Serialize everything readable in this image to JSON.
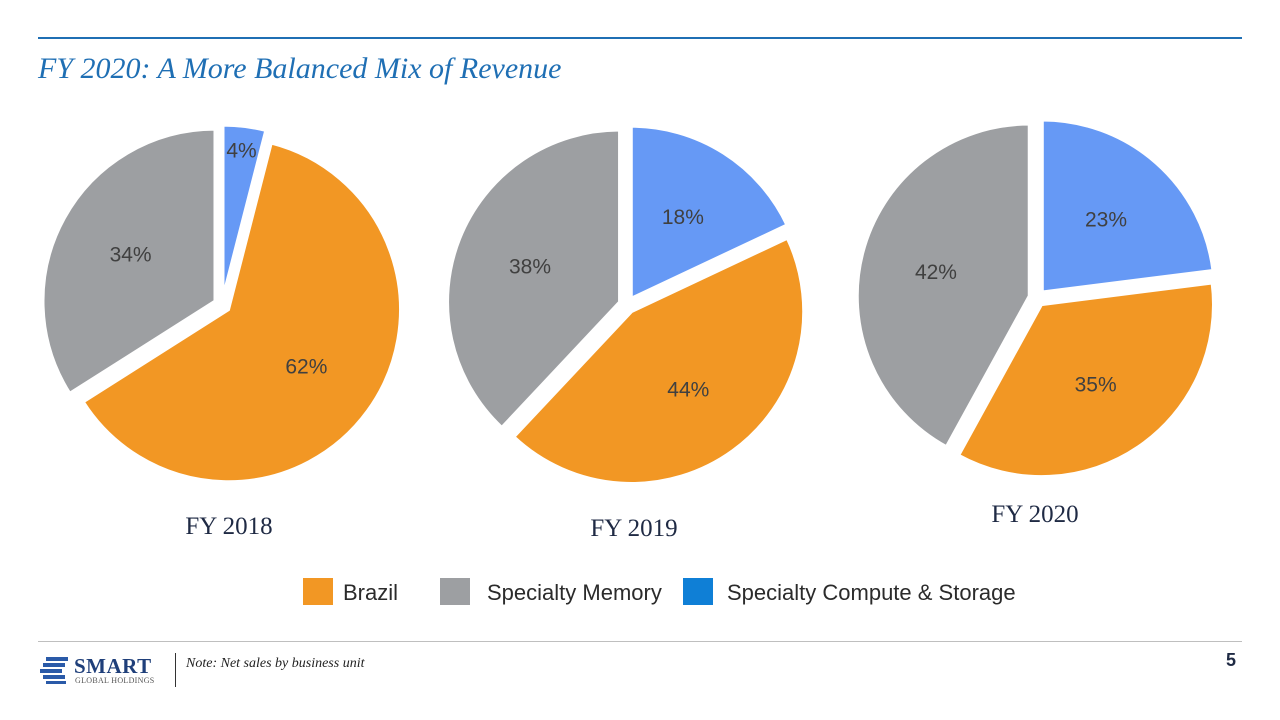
{
  "slide": {
    "title": "FY 2020: A More Balanced Mix of Revenue",
    "note": "Note: Net sales by business unit",
    "page_number": "5",
    "logo": {
      "name": "SMART",
      "subtitle": "GLOBAL HOLDINGS"
    }
  },
  "legend": [
    {
      "label": "Brazil",
      "color": "#f29724"
    },
    {
      "label": "Specialty Memory",
      "color": "#9d9fa2"
    },
    {
      "label": "Specialty Compute & Storage",
      "color": "#0f7fd6"
    }
  ],
  "chart_data": [
    {
      "type": "pie",
      "title": "FY 2018",
      "categories": [
        "Specialty Compute & Storage",
        "Brazil",
        "Specialty Memory"
      ],
      "values": [
        4,
        62,
        34
      ],
      "labels": [
        "4%",
        "62%",
        "34%"
      ],
      "slice_colors": [
        "#6699f5",
        "#f29724",
        "#9d9fa2"
      ]
    },
    {
      "type": "pie",
      "title": "FY 2019",
      "categories": [
        "Specialty Compute & Storage",
        "Brazil",
        "Specialty Memory"
      ],
      "values": [
        18,
        44,
        38
      ],
      "labels": [
        "18%",
        "44%",
        "38%"
      ],
      "slice_colors": [
        "#6699f5",
        "#f29724",
        "#9d9fa2"
      ]
    },
    {
      "type": "pie",
      "title": "FY 2020",
      "categories": [
        "Specialty Compute & Storage",
        "Brazil",
        "Specialty Memory"
      ],
      "values": [
        23,
        35,
        42
      ],
      "labels": [
        "23%",
        "35%",
        "42%"
      ],
      "slice_colors": [
        "#6699f5",
        "#f29724",
        "#9d9fa2"
      ]
    }
  ]
}
